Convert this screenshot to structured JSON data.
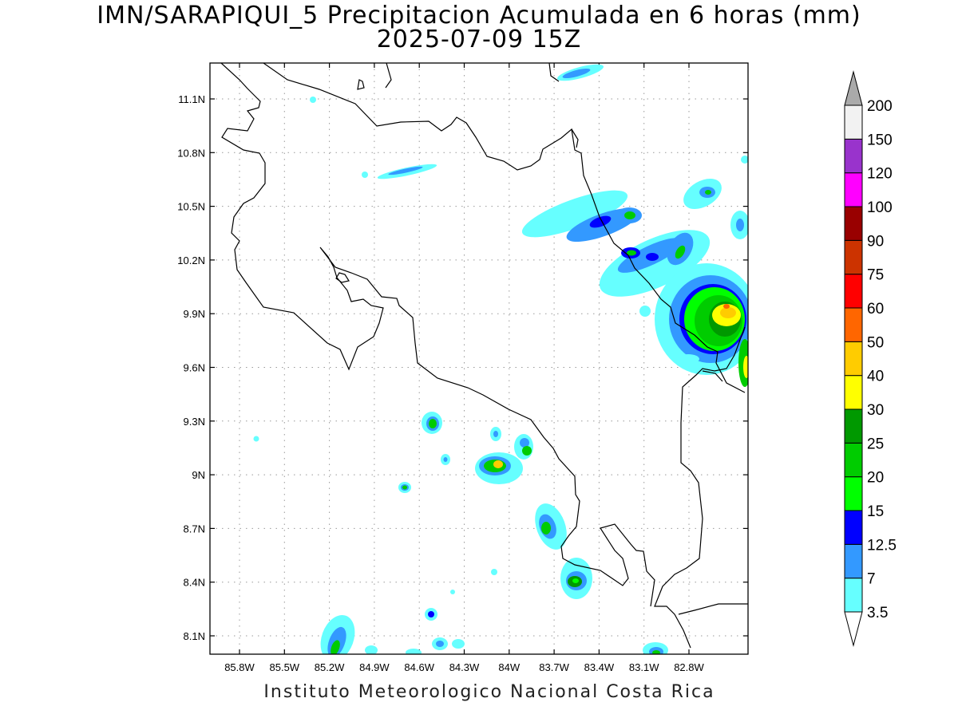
{
  "title": {
    "line1": "IMN/SARAPIQUI_5 Precipitacion Acumulada en 6 horas (mm)",
    "line2": "2025-07-09 15Z"
  },
  "credit": "Instituto Meteorologico Nacional Costa Rica",
  "map": {
    "lat_labels": [
      "11.1N",
      "10.8N",
      "10.5N",
      "10.2N",
      "9.9N",
      "9.6N",
      "9.3N",
      "9N",
      "8.7N",
      "8.4N",
      "8.1N"
    ],
    "lon_labels": [
      "85.8W",
      "85.5W",
      "85.2W",
      "84.9W",
      "84.6W",
      "84.3W",
      "84W",
      "83.7W",
      "83.4W",
      "83.1W",
      "82.8W"
    ],
    "grid": "dotted"
  },
  "colorbar": {
    "levels": [
      "3.5",
      "7",
      "12.5",
      "15",
      "20",
      "25",
      "30",
      "40",
      "50",
      "60",
      "75",
      "90",
      "100",
      "120",
      "150",
      "200"
    ],
    "colors": [
      "#66ffff",
      "#3399ff",
      "#0000ff",
      "#00ff00",
      "#00cc00",
      "#009900",
      "#ffff00",
      "#ffcc00",
      "#ff6600",
      "#ff0000",
      "#cc3300",
      "#990000",
      "#ff00ff",
      "#9933cc",
      "#f2f2f2"
    ],
    "arrow_top_color": "#aaaaaa",
    "arrow_bottom_color": "#ffffff"
  },
  "colors": {
    "background": "#ffffff",
    "coastline": "#000000",
    "grid": "#999999"
  }
}
